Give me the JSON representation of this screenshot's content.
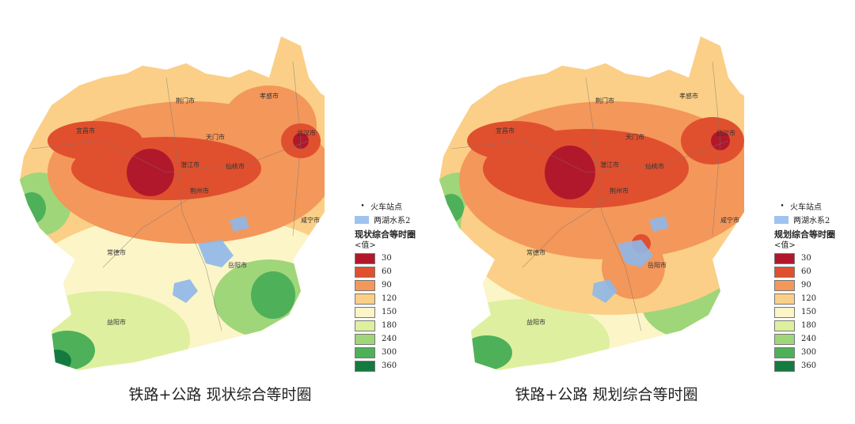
{
  "maps": [
    {
      "caption": "铁路+公路 现状综合等时圈",
      "legend_title": "现状综合等时圈",
      "legend_sub": "<值>",
      "variant": "current"
    },
    {
      "caption": "铁路+公路 规划综合等时圈",
      "legend_title": "规划综合等时圈",
      "legend_sub": "<值>",
      "variant": "planned"
    }
  ],
  "legend_common": {
    "station_label": "火车站点",
    "water_label": "两湖水系2",
    "classes": [
      {
        "value": "30",
        "color": "#b2182b"
      },
      {
        "value": "60",
        "color": "#e0502e"
      },
      {
        "value": "90",
        "color": "#f4975a"
      },
      {
        "value": "120",
        "color": "#fbcf87"
      },
      {
        "value": "150",
        "color": "#fcf5c8"
      },
      {
        "value": "180",
        "color": "#def0a0"
      },
      {
        "value": "240",
        "color": "#9fd67a"
      },
      {
        "value": "300",
        "color": "#4fb05a"
      },
      {
        "value": "360",
        "color": "#157a3f"
      }
    ]
  },
  "cities": {
    "jingmen": "荆门市",
    "xiaogan": "孝感市",
    "yichang": "宜昌市",
    "tianmen": "天门市",
    "wuhan": "武汉市",
    "zhijiang": "潜江市",
    "xiantao": "仙桃市",
    "jingzhou": "荆州市",
    "xianning": "咸宁市",
    "changde": "常德市",
    "yueyang": "岳阳市",
    "yiyang": "益阳市"
  }
}
